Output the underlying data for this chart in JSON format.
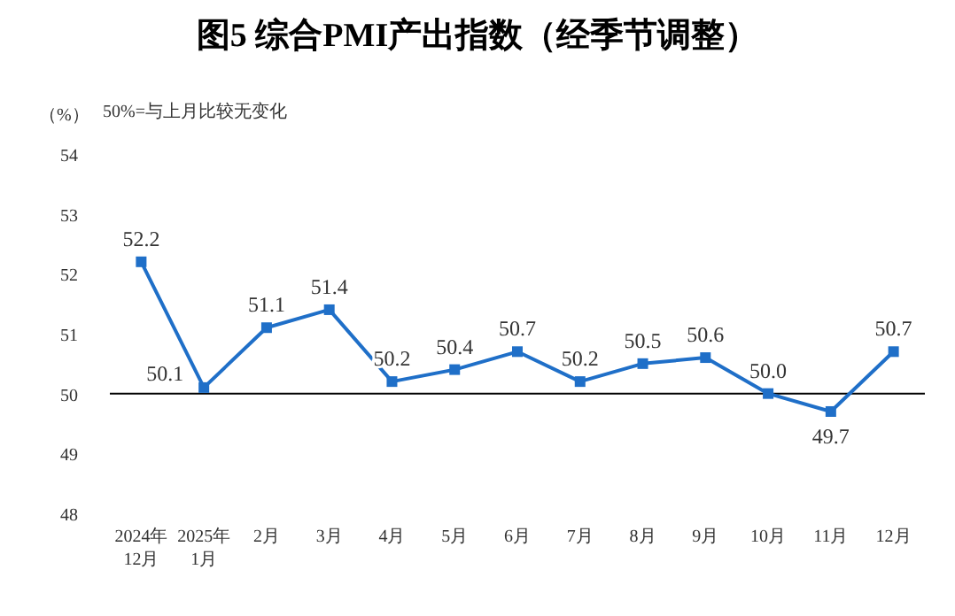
{
  "chart_data": {
    "type": "line",
    "title": "图5  综合PMI产出指数（经季节调整）",
    "ylabel": "（%）",
    "annotations": [
      "50%=与上月比较无变化"
    ],
    "categories": [
      "2024年\n12月",
      "2025年\n1月",
      "2月",
      "3月",
      "4月",
      "5月",
      "6月",
      "7月",
      "8月",
      "9月",
      "10月",
      "11月",
      "12月"
    ],
    "series": [
      {
        "color": "#1f6fc8",
        "values": [
          52.2,
          50.1,
          51.1,
          51.4,
          50.2,
          50.4,
          50.7,
          50.2,
          50.5,
          50.6,
          50.0,
          49.7,
          50.7
        ],
        "value_labels": [
          "52.2",
          "50.1",
          "51.1",
          "51.4",
          "50.2",
          "50.4",
          "50.7",
          "50.2",
          "50.5",
          "50.6",
          "50.0",
          "49.7",
          "50.7"
        ]
      }
    ],
    "ylim": [
      48,
      54
    ],
    "yticks": [
      48,
      49,
      50,
      51,
      52,
      53,
      54
    ],
    "ref_lines": [
      {
        "axis": "y",
        "value": 50,
        "color": "#000000"
      }
    ],
    "marker": "square",
    "line_style": "solid"
  }
}
